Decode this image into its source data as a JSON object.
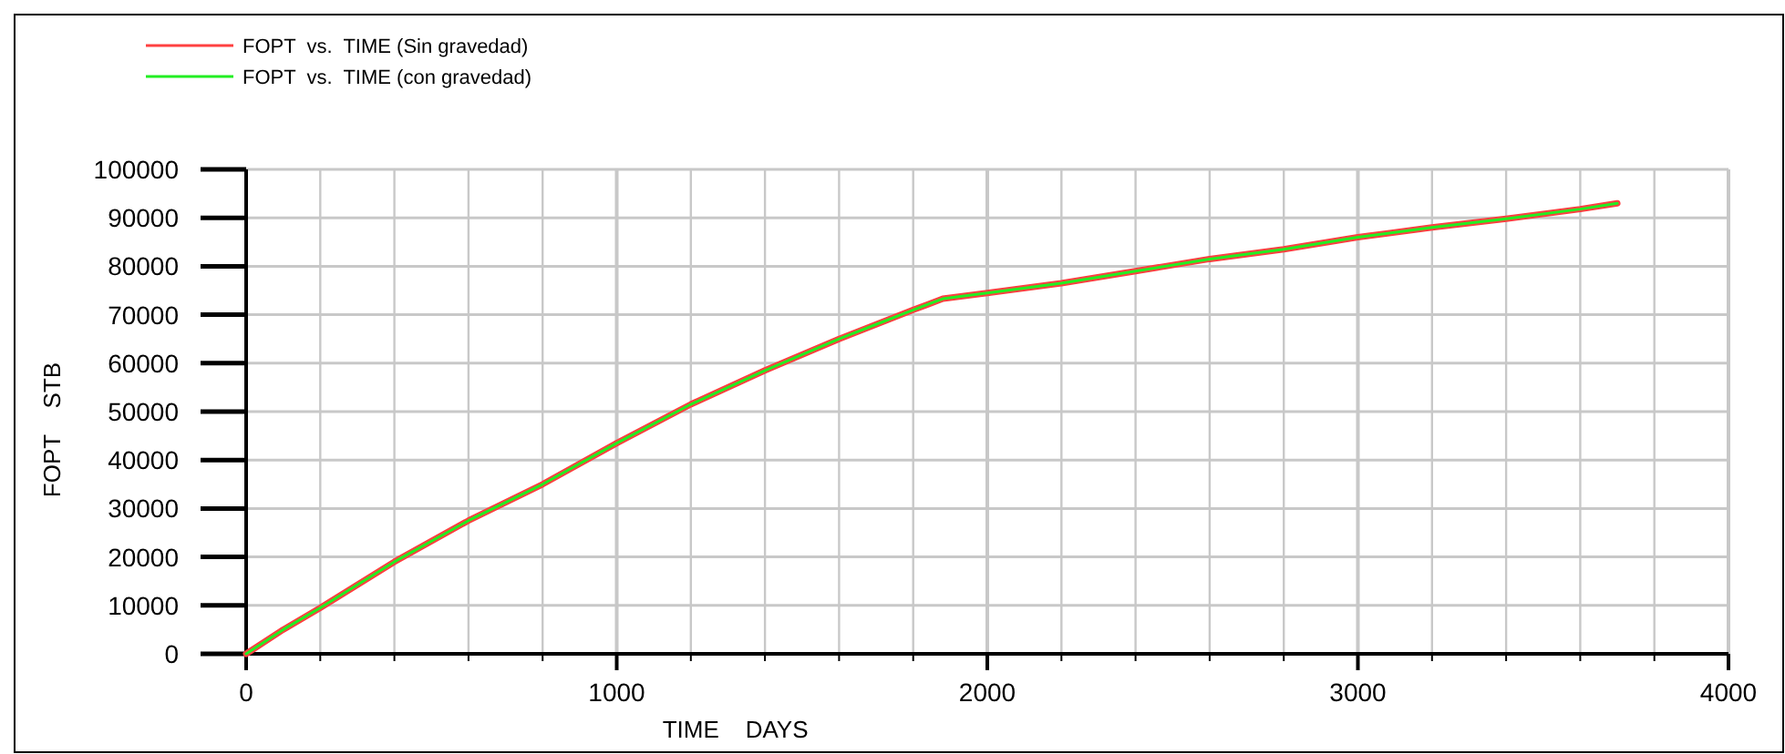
{
  "chart_data": {
    "type": "line",
    "xlabel": "TIME    DAYS",
    "ylabel": "FOPT    STB",
    "x": [
      0,
      100,
      200,
      400,
      600,
      800,
      1000,
      1200,
      1400,
      1600,
      1700,
      1800,
      1880,
      2000,
      2200,
      2400,
      2600,
      2800,
      3000,
      3200,
      3400,
      3600,
      3700
    ],
    "series": [
      {
        "name": "FOPT  vs.  TIME (Sin gravedad)",
        "color": "#ff4040",
        "values": [
          0,
          5000,
          9500,
          19000,
          27500,
          35000,
          43500,
          51500,
          58500,
          65000,
          68000,
          71000,
          73300,
          74500,
          76500,
          79000,
          81500,
          83500,
          86000,
          88000,
          89800,
          91800,
          93000
        ]
      },
      {
        "name": "FOPT  vs.  TIME (con gravedad)",
        "color": "#22ee22",
        "values": [
          0,
          5000,
          9500,
          19000,
          27500,
          35000,
          43500,
          51500,
          58500,
          65000,
          68000,
          71000,
          73300,
          74500,
          76500,
          79000,
          81500,
          83500,
          86000,
          88000,
          89800,
          91800,
          93000
        ]
      }
    ],
    "xlim": [
      0,
      4000
    ],
    "xticks": [
      0,
      {
        "value": 200,
        "label": null
      },
      {
        "value": 400,
        "label": null
      },
      {
        "value": 600,
        "label": null
      },
      {
        "value": 800,
        "label": null
      },
      1000,
      {
        "value": 1200,
        "label": null
      },
      {
        "value": 1400,
        "label": null
      },
      {
        "value": 1600,
        "label": null
      },
      {
        "value": 1800,
        "label": null
      },
      2000,
      {
        "value": 2200,
        "label": null
      },
      {
        "value": 2400,
        "label": null
      },
      {
        "value": 2600,
        "label": null
      },
      {
        "value": 2800,
        "label": null
      },
      3000,
      {
        "value": 3200,
        "label": null
      },
      {
        "value": 3400,
        "label": null
      },
      {
        "value": 3600,
        "label": null
      },
      {
        "value": 3800,
        "label": null
      },
      4000
    ],
    "ylim": [
      0,
      100000
    ],
    "yticks": [
      0,
      10000,
      20000,
      30000,
      40000,
      50000,
      60000,
      70000,
      80000,
      90000,
      100000
    ],
    "grid": true,
    "legend": "top left",
    "marker": "none",
    "line_style": "solid"
  }
}
